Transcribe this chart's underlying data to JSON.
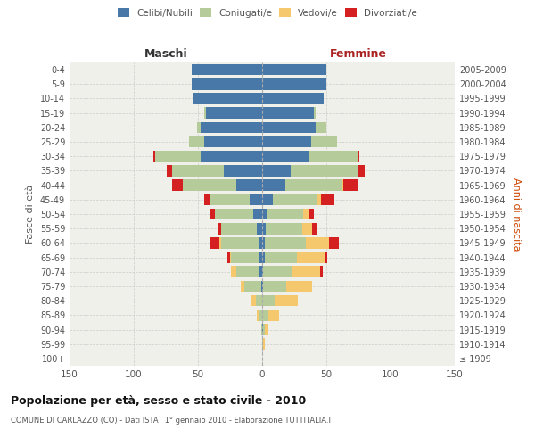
{
  "age_groups": [
    "100+",
    "95-99",
    "90-94",
    "85-89",
    "80-84",
    "75-79",
    "70-74",
    "65-69",
    "60-64",
    "55-59",
    "50-54",
    "45-49",
    "40-44",
    "35-39",
    "30-34",
    "25-29",
    "20-24",
    "15-19",
    "10-14",
    "5-9",
    "0-4"
  ],
  "birth_years": [
    "≤ 1909",
    "1910-1914",
    "1915-1919",
    "1920-1924",
    "1925-1929",
    "1930-1934",
    "1935-1939",
    "1940-1944",
    "1945-1949",
    "1950-1954",
    "1955-1959",
    "1960-1964",
    "1965-1969",
    "1970-1974",
    "1975-1979",
    "1980-1984",
    "1985-1989",
    "1990-1994",
    "1995-1999",
    "2000-2004",
    "2005-2009"
  ],
  "male": {
    "celibe": [
      0,
      0,
      0,
      0,
      0,
      1,
      2,
      2,
      2,
      4,
      7,
      10,
      20,
      30,
      48,
      45,
      48,
      44,
      54,
      55,
      55
    ],
    "coniugato": [
      0,
      0,
      1,
      3,
      5,
      13,
      18,
      22,
      30,
      28,
      30,
      30,
      42,
      40,
      35,
      12,
      3,
      1,
      0,
      0,
      0
    ],
    "vedovo": [
      0,
      0,
      0,
      1,
      3,
      3,
      4,
      1,
      1,
      0,
      0,
      0,
      0,
      0,
      0,
      0,
      0,
      0,
      0,
      0,
      0
    ],
    "divorziato": [
      0,
      0,
      0,
      0,
      0,
      0,
      0,
      2,
      8,
      2,
      4,
      5,
      8,
      4,
      2,
      0,
      0,
      0,
      0,
      0,
      0
    ]
  },
  "female": {
    "nubile": [
      0,
      0,
      1,
      0,
      0,
      1,
      1,
      2,
      2,
      3,
      4,
      8,
      18,
      22,
      36,
      38,
      42,
      40,
      48,
      50,
      50
    ],
    "coniugata": [
      0,
      1,
      1,
      5,
      10,
      18,
      22,
      25,
      32,
      28,
      28,
      35,
      44,
      52,
      38,
      20,
      8,
      2,
      0,
      0,
      0
    ],
    "vedova": [
      0,
      1,
      3,
      8,
      18,
      20,
      22,
      22,
      18,
      8,
      5,
      3,
      1,
      1,
      0,
      0,
      0,
      0,
      0,
      0,
      0
    ],
    "divorziata": [
      0,
      0,
      0,
      0,
      0,
      0,
      2,
      2,
      8,
      4,
      3,
      10,
      12,
      5,
      2,
      0,
      0,
      0,
      0,
      0,
      0
    ]
  },
  "colors": {
    "celibe": "#4878a8",
    "coniugato": "#b5cb99",
    "vedovo": "#f5c86e",
    "divorziato": "#d42020"
  },
  "title": "Popolazione per età, sesso e stato civile - 2010",
  "subtitle": "COMUNE DI CARLAZZO (CO) - Dati ISTAT 1° gennaio 2010 - Elaborazione TUTTITALIA.IT",
  "xlabel_left": "Maschi",
  "xlabel_right": "Femmine",
  "ylabel_left": "Fasce di età",
  "ylabel_right": "Anni di nascita",
  "xlim": 150,
  "bg_color": "#ffffff",
  "plot_bg": "#f0f0eb",
  "grid_color": "#cccccc"
}
